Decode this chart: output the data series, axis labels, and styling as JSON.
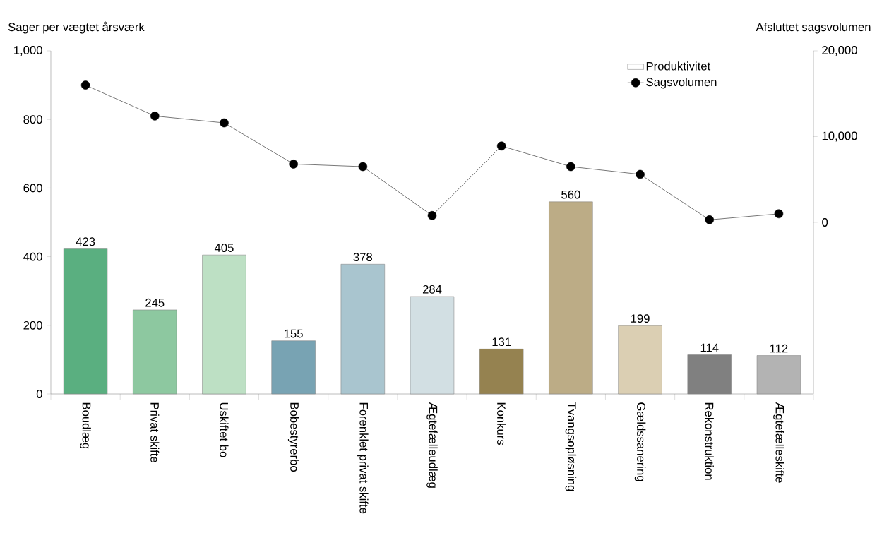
{
  "chart_data": {
    "type": "bar",
    "ylabel": "Sager per vægtet årsværk",
    "y2label": "Afsluttet sagsvolumen",
    "categories": [
      "Boudlæg",
      "Privat skifte",
      "Uskiftet bo",
      "Bobestyrerbo",
      "Forenklet privat skifte",
      "Ægtefælleudlæg",
      "Konkurs",
      "Tvangsopløsning",
      "Gældssanering",
      "Rekonstruktion",
      "Ægtefælleskifte"
    ],
    "ylim": [
      0,
      1000
    ],
    "yticks": [
      0,
      200,
      400,
      600,
      800,
      {
        "value": 1000,
        "label": "1,000"
      }
    ],
    "y2lim": [
      -20000,
      20000
    ],
    "y2ticks": [
      0,
      {
        "value": 10000,
        "label": "10,000"
      },
      {
        "value": 20000,
        "label": "20,000"
      }
    ],
    "legend": "top right",
    "series": [
      {
        "name": "Produktivitet",
        "color": "#ffffff",
        "colors": [
          "#5aaf80",
          "#8dc8a0",
          "#bde0c4",
          "#78a3b3",
          "#a9c5cf",
          "#d2dfe3",
          "#958250",
          "#bcac86",
          "#dbcfb3",
          "#808080",
          "#b3b3b3"
        ],
        "values": [
          423,
          245,
          405,
          155,
          378,
          284,
          131,
          560,
          199,
          114,
          112
        ],
        "value_labels": [
          "423",
          "245",
          "405",
          "155",
          "378",
          "284",
          "131",
          "560",
          "199",
          "114",
          "112"
        ]
      },
      {
        "name": "Sagsvolumen",
        "type": "line",
        "axis": "y2",
        "color": "#000000",
        "marker": "circle",
        "values": [
          16000,
          12400,
          11600,
          6800,
          6500,
          800,
          8900,
          6500,
          5600,
          300,
          1000
        ]
      }
    ]
  }
}
